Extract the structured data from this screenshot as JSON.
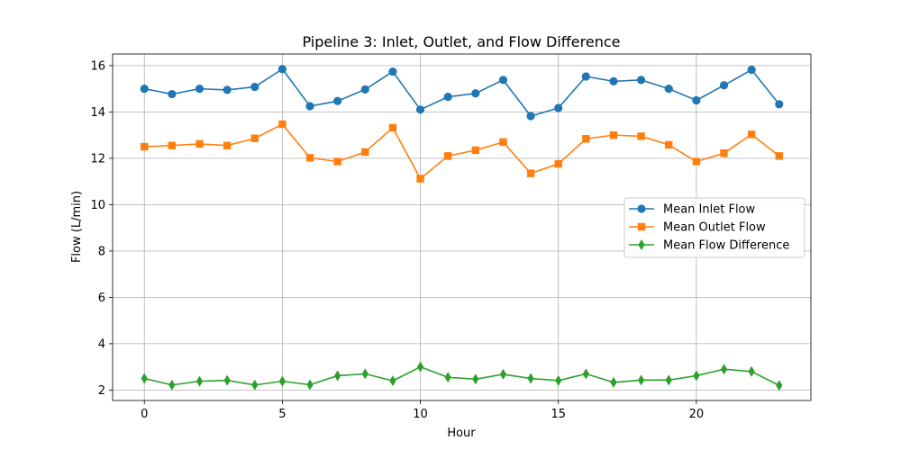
{
  "chart_data": {
    "type": "line",
    "title": "Pipeline 3: Inlet, Outlet, and Flow Difference",
    "xlabel": "Hour",
    "ylabel": "Flow (L/min)",
    "xlim": [
      -1.15,
      24.15
    ],
    "ylim": [
      1.55,
      16.5
    ],
    "xticks": [
      0,
      5,
      10,
      15,
      20
    ],
    "yticks": [
      2,
      4,
      6,
      8,
      10,
      12,
      14,
      16
    ],
    "grid": true,
    "legend_position": "center-right",
    "x": [
      0,
      1,
      2,
      3,
      4,
      5,
      6,
      7,
      8,
      9,
      10,
      11,
      12,
      13,
      14,
      15,
      16,
      17,
      18,
      19,
      20,
      21,
      22,
      23
    ],
    "series": [
      {
        "name": "Mean Inlet Flow",
        "color": "#1f77b4",
        "marker": "circle",
        "values": [
          15.0,
          14.77,
          15.0,
          14.95,
          15.08,
          15.85,
          14.25,
          14.47,
          14.97,
          15.74,
          14.1,
          14.65,
          14.8,
          15.38,
          13.82,
          14.17,
          15.53,
          15.32,
          15.38,
          15.0,
          14.5,
          15.15,
          15.82,
          14.33
        ]
      },
      {
        "name": "Mean Outlet Flow",
        "color": "#ff7f0e",
        "marker": "square",
        "values": [
          12.5,
          12.55,
          12.62,
          12.55,
          12.86,
          13.47,
          12.02,
          11.86,
          12.27,
          13.32,
          11.12,
          12.1,
          12.35,
          12.7,
          11.35,
          11.76,
          12.84,
          13.0,
          12.95,
          12.58,
          11.86,
          12.22,
          13.03,
          12.1
        ]
      },
      {
        "name": "Mean Flow Difference",
        "color": "#2ca02c",
        "marker": "diamond",
        "values": [
          2.5,
          2.22,
          2.38,
          2.42,
          2.22,
          2.38,
          2.23,
          2.62,
          2.7,
          2.4,
          3.0,
          2.55,
          2.47,
          2.68,
          2.5,
          2.41,
          2.7,
          2.33,
          2.43,
          2.43,
          2.62,
          2.9,
          2.8,
          2.2
        ]
      }
    ]
  }
}
